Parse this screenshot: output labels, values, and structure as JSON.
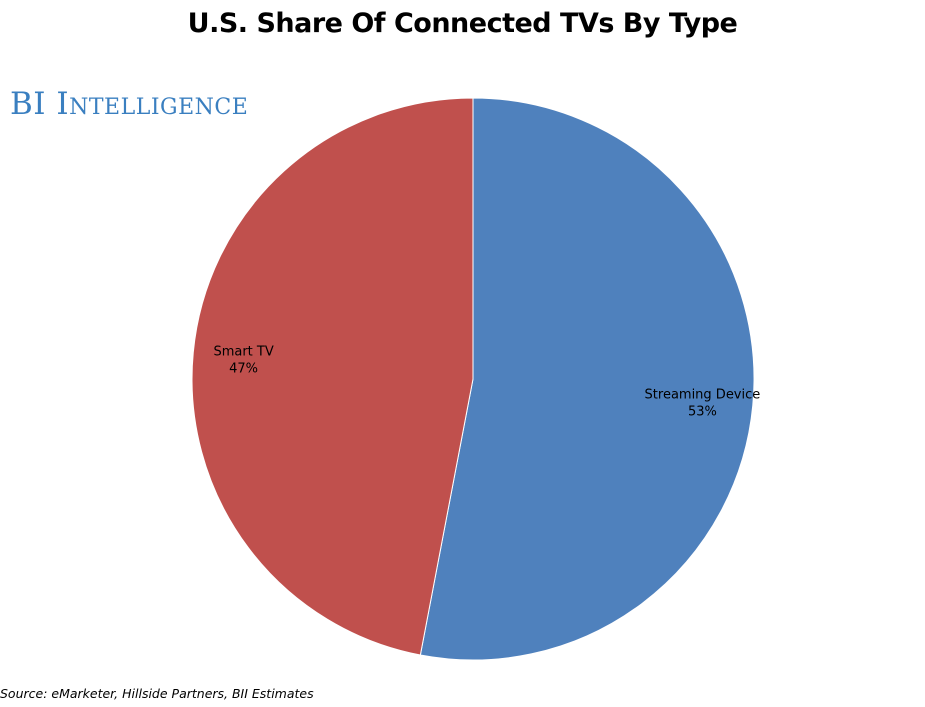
{
  "chart_data": {
    "type": "pie",
    "title": "U.S. Share Of Connected TVs By Type",
    "slices": [
      {
        "label": "Streaming Device",
        "value": 53,
        "value_label": "53%",
        "color": "#4f81bd"
      },
      {
        "label": "Smart TV",
        "value": 47,
        "value_label": "47%",
        "color": "#c0504d"
      }
    ],
    "start_angle": "12 o'clock",
    "direction": "clockwise",
    "legend": "none",
    "source": "Source: eMarketer, Hillside Partners, BII Estimates"
  },
  "branding": {
    "logo_text": "BI Intelligence",
    "logo_color": "#3a7fc0"
  }
}
